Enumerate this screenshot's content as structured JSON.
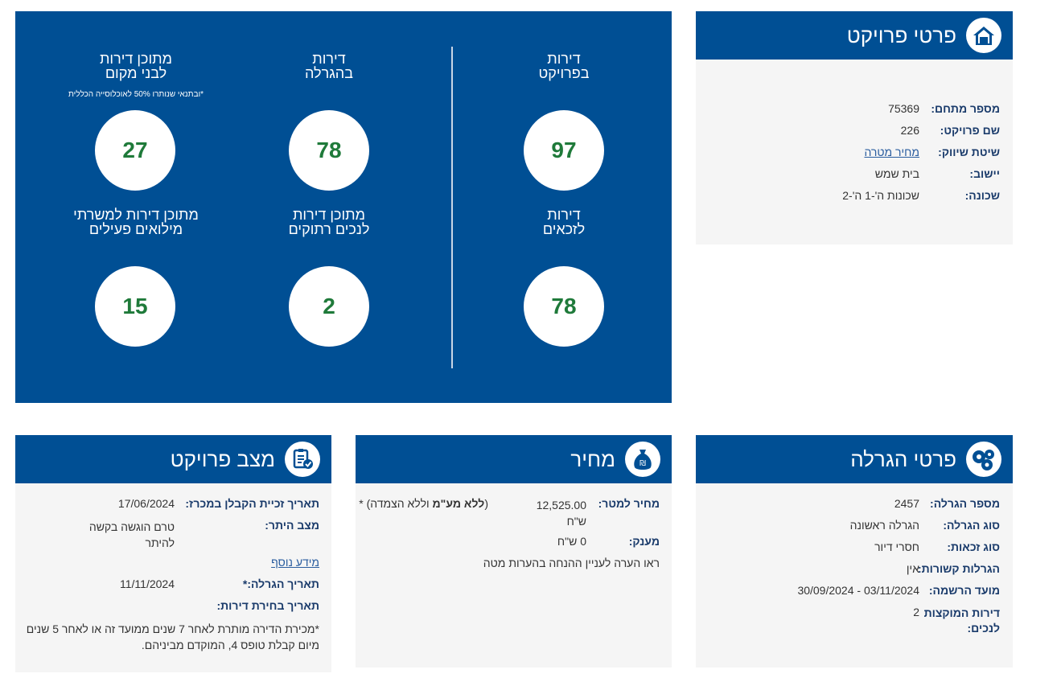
{
  "project_details": {
    "title": "פרטי פרויקט",
    "rows": [
      {
        "label": "מספר מתחם:",
        "value": "75369"
      },
      {
        "label": "שם פרויקט:",
        "value": "226"
      },
      {
        "label": "שיטת שיווק:",
        "value": "מחיר מטרה"
      },
      {
        "label": "יישוב:",
        "value": "בית שמש"
      },
      {
        "label": "שכונה:",
        "value": "שכונות ה'-1 ה'-2"
      }
    ]
  },
  "stats": {
    "apartments_in_project": {
      "title_line1": "דירות",
      "title_line2": "בפרויקט",
      "value": "97"
    },
    "apartments_in_lottery": {
      "title_line1": "דירות",
      "title_line2": "בהגרלה",
      "value": "78"
    },
    "local_residents": {
      "title_line1": "מתוכן דירות",
      "title_line2": "לבני מקום",
      "note": "*ובתנאי שנותרו 50% לאוכלוסייה הכללית",
      "value": "27"
    },
    "eligible": {
      "title_line1": "דירות",
      "title_line2": "לזכאים",
      "value": "78"
    },
    "disabled": {
      "title_line1": "מתוכן דירות",
      "title_line2": "לנכים רתוקים",
      "value": "2"
    },
    "reservists": {
      "title_line1": "מתוכן דירות למשרתי",
      "title_line2": "מילואים פעילים",
      "value": "15"
    }
  },
  "lottery_details": {
    "title": "פרטי הגרלה",
    "rows": [
      {
        "label": "מספר הגרלה:",
        "value": "2457"
      },
      {
        "label": "סוג הגרלה:",
        "value": "הגרלה ראשונה"
      },
      {
        "label": "סוג זכאות:",
        "value": "חסרי דיור"
      },
      {
        "label": "הגרלות קשורות:",
        "value": "אין"
      },
      {
        "label": "מועד הרשמה:",
        "value": "03/11/2024 - 30/09/2024"
      },
      {
        "label_line1": "דירות המוקצות",
        "label_line2": "לנכים:",
        "value": "2"
      }
    ]
  },
  "price": {
    "title": "מחיר",
    "price_per_meter_label": "מחיר למטר:",
    "price_per_meter_value": "12,525.00",
    "price_per_meter_currency": "ש\"ח",
    "price_note_bold": "ללא מע\"מ",
    "price_note_rest": " וללא הצמדה)",
    "price_note_open": "(",
    "price_note_star": " *",
    "grant_label": "מענק:",
    "grant_value": "0 ש\"ח",
    "remark": "ראו הערה לעניין ההנחה בהערות מטה"
  },
  "project_status": {
    "title": "מצב פרויקט",
    "contractor_date_label": "תאריך זכיית הקבלן במכרז:",
    "contractor_date_value": "17/06/2024",
    "permit_label": "מצב היתר:",
    "permit_value_line1": "טרם הוגשה בקשה",
    "permit_value_line2": "להיתר",
    "more_info_link": "מידע נוסף",
    "lottery_date_label": "תאריך הגרלה:*",
    "lottery_date_value": "11/11/2024",
    "apartment_choice_label": "תאריך בחירת דירות:",
    "footnote_line1": "*מכירת הדירה מותרת לאחר 7 שנים ממועד זה או לאחר 5 שנים",
    "footnote_line2": "מיום קבלת טופס 4, המוקדם מביניהם."
  },
  "colors": {
    "brand_blue": "#004f94",
    "number_green": "#1f7a3a",
    "panel_bg": "#f5f5f5"
  }
}
